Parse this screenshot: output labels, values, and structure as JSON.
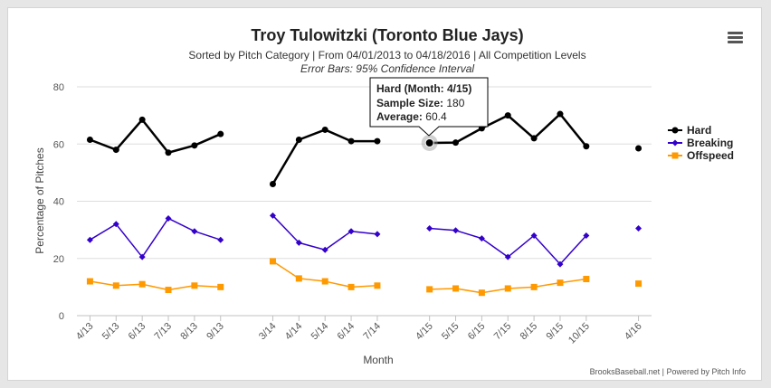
{
  "chart_data": {
    "type": "line",
    "title": "Troy Tulowitzki (Toronto Blue Jays)",
    "subtitle": "Sorted by Pitch Category | From 04/01/2013 to 04/18/2016 | All Competition Levels",
    "subtitle2": "Error Bars: 95% Confidence Interval",
    "xlabel": "Month",
    "ylabel": "Percentage of Pitches",
    "ylim": [
      0,
      80
    ],
    "yticks": [
      "0",
      "20",
      "40",
      "60",
      "80"
    ],
    "grid": true,
    "legend_position": "right",
    "categories": [
      "4/13",
      "5/13",
      "6/13",
      "7/13",
      "8/13",
      "9/13",
      "",
      "3/14",
      "4/14",
      "5/14",
      "6/14",
      "7/14",
      "",
      "4/15",
      "5/15",
      "6/15",
      "7/15",
      "8/15",
      "9/15",
      "10/15",
      "",
      "4/16"
    ],
    "series": [
      {
        "name": "Hard",
        "color": "#000000",
        "marker": "circle",
        "values": [
          61.5,
          58,
          68.5,
          57,
          59.5,
          63.5,
          null,
          46,
          61.5,
          65,
          61,
          61,
          null,
          60.4,
          60.5,
          65.5,
          70,
          62,
          70.5,
          59.2,
          null,
          58.5
        ]
      },
      {
        "name": "Breaking",
        "color": "#3300cc",
        "marker": "diamond",
        "values": [
          26.5,
          32,
          20.5,
          34,
          29.5,
          26.5,
          null,
          35,
          25.5,
          23,
          29.5,
          28.5,
          null,
          30.5,
          29.8,
          27,
          20.5,
          28,
          18,
          28,
          null,
          30.5
        ]
      },
      {
        "name": "Offspeed",
        "color": "#ff9900",
        "marker": "square",
        "values": [
          12,
          10.5,
          11,
          9,
          10.5,
          10,
          null,
          19,
          13,
          12,
          10,
          10.5,
          null,
          9.2,
          9.5,
          8,
          9.5,
          10,
          11.5,
          12.8,
          null,
          11.2
        ]
      }
    ]
  },
  "tooltip": {
    "title": "Hard (Month: 4/15)",
    "sample_label": "Sample Size:",
    "sample_value": "180",
    "avg_label": "Average:",
    "avg_value": "60.4",
    "point_category_index": 13
  },
  "menu_icon": "hamburger-menu-icon",
  "credits": "BrooksBaseball.net | Powered by Pitch Info"
}
